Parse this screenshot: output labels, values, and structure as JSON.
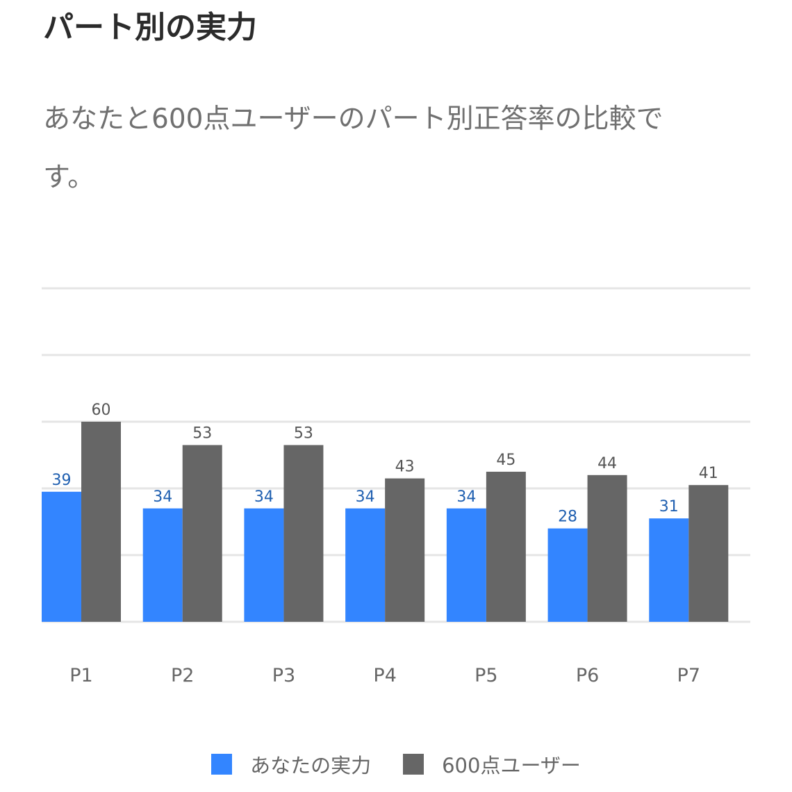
{
  "header": {
    "title": "パート別の実力",
    "description": "あなたと600点ユーザーのパート別正答率の比較です。"
  },
  "colors": {
    "you": "#3385FF",
    "user600": "#666666",
    "you_label": "#1F5FB0",
    "user600_label": "#555555",
    "grid": "#E5E5E5",
    "tick_label": "#666666"
  },
  "chart_data": {
    "type": "bar",
    "categories": [
      "P1",
      "P2",
      "P3",
      "P4",
      "P5",
      "P6",
      "P7"
    ],
    "series": [
      {
        "name": "あなたの実力",
        "values": [
          39,
          34,
          34,
          34,
          34,
          28,
          31
        ]
      },
      {
        "name": "600点ユーザー",
        "values": [
          60,
          53,
          53,
          43,
          45,
          44,
          41
        ]
      }
    ],
    "ylim": [
      0,
      100
    ],
    "grid": true,
    "legend": "bottom",
    "data_labels": true
  }
}
